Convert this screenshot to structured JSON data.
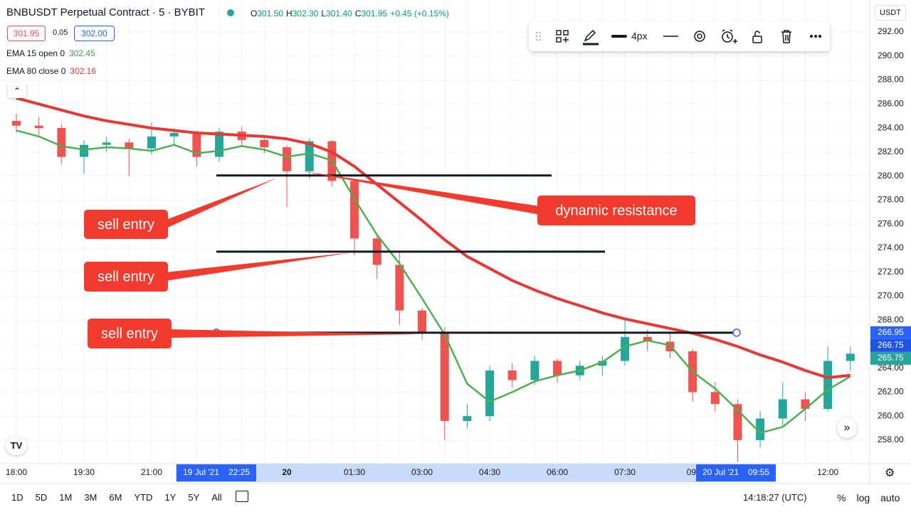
{
  "header": {
    "symbol": "BNBUSDT Perpetual Contract · 5 · BYBIT",
    "ohlc": [
      {
        "label": "O",
        "value": "301.50"
      },
      {
        "label": "H",
        "value": "302.30"
      },
      {
        "label": "L",
        "value": "301.40"
      },
      {
        "label": "C",
        "value": "301.95"
      }
    ],
    "change": "+0.45 (+0.15%)",
    "bid": "301.95",
    "spread": "0.05",
    "ask": "302.00",
    "indicators": [
      {
        "label": "EMA 15 open 0",
        "value": "302.45",
        "color": "#43a047"
      },
      {
        "label": "EMA 80 close 0",
        "value": "302.16",
        "color": "#e53935"
      }
    ]
  },
  "toolbar": {
    "width_label": "4px"
  },
  "currency": "USDT",
  "chart_data": {
    "type": "candlestick",
    "categories": [
      "18:00",
      null,
      null,
      "19:30",
      null,
      null,
      "21:00",
      null,
      null,
      null,
      null,
      null,
      "20",
      null,
      null,
      "01:30",
      null,
      null,
      "03:00",
      null,
      null,
      "04:30",
      null,
      null,
      "06:00",
      null,
      null,
      "07:30",
      null,
      null,
      "09:",
      null,
      null,
      null,
      null,
      null,
      "12:00",
      null
    ],
    "candles": [
      {
        "open": 284.6,
        "high": 285.2,
        "low": 283.6,
        "close": 284.2
      },
      {
        "open": 284.2,
        "high": 284.9,
        "low": 283.4,
        "close": 284.0
      },
      {
        "open": 284.0,
        "high": 284.3,
        "low": 281.0,
        "close": 281.6
      },
      {
        "open": 281.6,
        "high": 283.0,
        "low": 280.2,
        "close": 282.6
      },
      {
        "open": 282.6,
        "high": 283.3,
        "low": 282.0,
        "close": 282.8
      },
      {
        "open": 282.8,
        "high": 283.1,
        "low": 280.0,
        "close": 282.3
      },
      {
        "open": 282.3,
        "high": 284.5,
        "low": 281.8,
        "close": 283.3
      },
      {
        "open": 283.3,
        "high": 284.0,
        "low": 282.5,
        "close": 283.6
      },
      {
        "open": 283.6,
        "high": 283.8,
        "low": 280.8,
        "close": 281.6
      },
      {
        "open": 281.6,
        "high": 284.0,
        "low": 281.2,
        "close": 283.7
      },
      {
        "open": 283.7,
        "high": 284.1,
        "low": 282.6,
        "close": 283.0
      },
      {
        "open": 283.0,
        "high": 283.3,
        "low": 281.9,
        "close": 282.4
      },
      {
        "open": 282.4,
        "high": 282.6,
        "low": 277.4,
        "close": 280.4
      },
      {
        "open": 280.4,
        "high": 283.1,
        "low": 279.8,
        "close": 282.9
      },
      {
        "open": 282.9,
        "high": 283.0,
        "low": 279.2,
        "close": 279.6
      },
      {
        "open": 279.6,
        "high": 279.8,
        "low": 273.4,
        "close": 274.8
      },
      {
        "open": 274.8,
        "high": 275.0,
        "low": 271.4,
        "close": 272.6
      },
      {
        "open": 272.6,
        "high": 273.8,
        "low": 267.6,
        "close": 268.8
      },
      {
        "open": 268.8,
        "high": 269.0,
        "low": 266.4,
        "close": 267.0
      },
      {
        "open": 267.0,
        "high": 267.4,
        "low": 258.0,
        "close": 259.6
      },
      {
        "open": 259.6,
        "high": 261.0,
        "low": 259.0,
        "close": 260.0
      },
      {
        "open": 260.0,
        "high": 264.2,
        "low": 259.6,
        "close": 263.8
      },
      {
        "open": 263.8,
        "high": 264.4,
        "low": 262.4,
        "close": 263.0
      },
      {
        "open": 263.0,
        "high": 265.0,
        "low": 262.6,
        "close": 264.6
      },
      {
        "open": 264.6,
        "high": 264.8,
        "low": 262.8,
        "close": 263.4
      },
      {
        "open": 263.4,
        "high": 264.6,
        "low": 263.0,
        "close": 264.2
      },
      {
        "open": 264.2,
        "high": 265.0,
        "low": 263.4,
        "close": 264.6
      },
      {
        "open": 264.6,
        "high": 268.2,
        "low": 264.2,
        "close": 266.6
      },
      {
        "open": 266.6,
        "high": 267.2,
        "low": 265.4,
        "close": 266.2
      },
      {
        "open": 266.2,
        "high": 267.0,
        "low": 264.8,
        "close": 265.4
      },
      {
        "open": 265.4,
        "high": 265.6,
        "low": 261.2,
        "close": 262.0
      },
      {
        "open": 262.0,
        "high": 262.8,
        "low": 260.4,
        "close": 261.0
      },
      {
        "open": 261.0,
        "high": 261.4,
        "low": 256.2,
        "close": 258.0
      },
      {
        "open": 258.0,
        "high": 260.4,
        "low": 257.4,
        "close": 259.8
      },
      {
        "open": 259.8,
        "high": 262.8,
        "low": 259.2,
        "close": 261.4
      },
      {
        "open": 261.4,
        "high": 262.0,
        "low": 259.6,
        "close": 260.6
      },
      {
        "open": 260.6,
        "high": 265.8,
        "low": 260.4,
        "close": 264.6
      },
      {
        "open": 264.6,
        "high": 265.8,
        "low": 263.8,
        "close": 265.2
      }
    ],
    "up_color": "#26a69a",
    "down_color": "#ef5350",
    "series": [
      {
        "name": "EMA 15",
        "color": "#4caf50",
        "values": [
          283.8,
          283.3,
          282.5,
          282.2,
          282.4,
          282.3,
          282.1,
          282.6,
          281.9,
          282.1,
          282.5,
          282.2,
          281.6,
          281.9,
          281.3,
          278.1,
          275.1,
          272.7,
          269.8,
          266.8,
          262.7,
          261.2,
          262.0,
          262.9,
          263.4,
          263.8,
          264.5,
          265.8,
          266.3,
          265.9,
          263.7,
          262.3,
          260.5,
          258.6,
          259.1,
          260.6,
          262.2,
          263.3
        ]
      },
      {
        "name": "EMA 80",
        "color": "#e53935",
        "values": [
          286.5,
          286.0,
          285.5,
          285.0,
          284.6,
          284.3,
          284.0,
          283.8,
          283.6,
          283.5,
          283.4,
          283.3,
          283.1,
          282.7,
          282.0,
          280.8,
          279.3,
          277.8,
          276.3,
          274.7,
          273.3,
          272.3,
          271.3,
          270.5,
          269.8,
          269.2,
          268.6,
          268.1,
          267.7,
          267.3,
          266.9,
          266.4,
          265.8,
          265.1,
          264.5,
          263.8,
          263.2,
          263.4
        ]
      }
    ],
    "ylim": [
      256.04,
      294.67
    ],
    "yticks": [
      {
        "value": 258,
        "label": "258.00"
      },
      {
        "value": 260,
        "label": "260.00"
      },
      {
        "value": 262,
        "label": "262.00"
      },
      {
        "value": 264,
        "label": "264.00"
      },
      {
        "value": 266,
        "label": "266.00"
      },
      {
        "value": 268,
        "label": "268.00"
      },
      {
        "value": 270,
        "label": "270.00"
      },
      {
        "value": 272,
        "label": "272.00"
      },
      {
        "value": 274,
        "label": "274.00"
      },
      {
        "value": 276,
        "label": "276.00"
      },
      {
        "value": 278,
        "label": "278.00"
      },
      {
        "value": 280,
        "label": "280.00"
      },
      {
        "value": 282,
        "label": "282.00"
      },
      {
        "value": 284,
        "label": "284.00"
      },
      {
        "value": 286,
        "label": "286.00"
      },
      {
        "value": 288,
        "label": "288.00"
      },
      {
        "value": 290,
        "label": "290.00"
      },
      {
        "value": 292,
        "label": "292.00"
      }
    ],
    "grid": true,
    "hlines": [
      {
        "value": 280.05
      },
      {
        "value": 273.7
      },
      {
        "value": 266.95
      }
    ],
    "price_labels": [
      {
        "value": 266.95,
        "label": "266.95",
        "color": "#2962ff"
      },
      {
        "value": 266.75,
        "label": "266.75",
        "color": "#1e53e5"
      },
      {
        "value": 265.75,
        "label": "265.75",
        "color": "#26a69a"
      }
    ],
    "annotations": [
      "sell entry",
      "sell entry",
      "sell entry",
      "dynamic resistance"
    ],
    "crosshair_labels": [
      {
        "date": "19 Jul '21",
        "time": "22:25"
      },
      {
        "date": "20 Jul '21",
        "time": "09:55"
      }
    ]
  },
  "bottom_bar": {
    "ranges": [
      "1D",
      "5D",
      "1M",
      "3M",
      "6M",
      "YTD",
      "1Y",
      "5Y",
      "All"
    ],
    "clock": "14:18:27 (UTC)",
    "options": [
      "%",
      "log",
      "auto"
    ]
  }
}
